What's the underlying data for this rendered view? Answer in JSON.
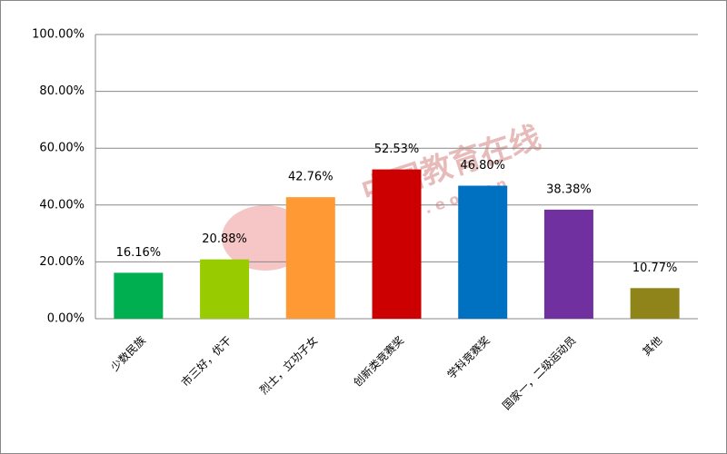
{
  "chart_data": {
    "type": "bar",
    "categories": [
      "少数民族",
      "市三好，优干",
      "烈士，立功子女",
      "创新类竞赛奖",
      "学科竞赛奖",
      "国家一，二级运动员",
      "其他"
    ],
    "values": [
      16.16,
      20.88,
      42.76,
      52.53,
      46.8,
      38.38,
      10.77
    ],
    "value_labels": [
      "16.16%",
      "20.88%",
      "42.76%",
      "52.53%",
      "46.80%",
      "38.38%",
      "10.77%"
    ],
    "colors": [
      "#00b050",
      "#99cc00",
      "#ff9933",
      "#cc0000",
      "#0070c0",
      "#7030a0",
      "#8f8419"
    ],
    "ylim": [
      0,
      100
    ],
    "yticks": [
      {
        "value": 0,
        "label": "0.00%"
      },
      {
        "value": 20,
        "label": "20.00%"
      },
      {
        "value": 40,
        "label": "40.00%"
      },
      {
        "value": 60,
        "label": "60.00%"
      },
      {
        "value": 80,
        "label": "80.00%"
      },
      {
        "value": 100,
        "label": "100.00%"
      }
    ],
    "grid": true,
    "watermark": {
      "title": "中国教育在线",
      "url": "w w w . e o l . c n"
    }
  }
}
